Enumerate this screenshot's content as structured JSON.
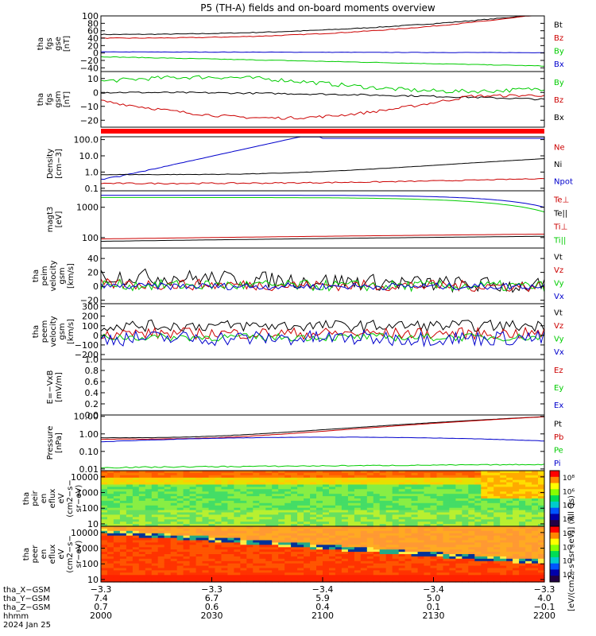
{
  "title": "P5 (TH-A) fields and on-board moments overview",
  "panels": [
    {
      "id": "fgs_gse",
      "ylabel_lines": [
        "tha",
        "fgs",
        "gse",
        "[nT]"
      ],
      "yticks": [
        "100",
        "80",
        "60",
        "40",
        "20",
        "0",
        "−20",
        "−40"
      ],
      "yrange": [
        -50,
        100
      ],
      "log": false,
      "legend": [
        {
          "label": "Bt",
          "color": "#000000"
        },
        {
          "label": "Bz",
          "color": "#cc0000"
        },
        {
          "label": "By",
          "color": "#00cc00"
        },
        {
          "label": "Bx",
          "color": "#0000cc"
        }
      ]
    },
    {
      "id": "fgs_gsm",
      "ylabel_lines": [
        "tha",
        "fgs",
        "gsm",
        "[nT]"
      ],
      "yticks": [
        "10",
        "0",
        "−10",
        "−20"
      ],
      "yrange": [
        -25,
        15
      ],
      "log": false,
      "legend": [
        {
          "label": "By",
          "color": "#00cc00"
        },
        {
          "label": "Bz",
          "color": "#cc0000"
        },
        {
          "label": "Bx",
          "color": "#000000"
        }
      ]
    },
    {
      "id": "density",
      "ylabel_lines": [
        "Density",
        "[cm−3]"
      ],
      "yticks": [
        "100.0",
        "10.0",
        "1.0",
        "0.1"
      ],
      "yrange": [
        0.07,
        150
      ],
      "log": true,
      "legend": [
        {
          "label": "Ne",
          "color": "#cc0000"
        },
        {
          "label": "Ni",
          "color": "#000000"
        },
        {
          "label": "Npot",
          "color": "#0000cc"
        }
      ]
    },
    {
      "id": "temperature",
      "ylabel_lines": [
        "magt3",
        "[eV]"
      ],
      "yticks": [
        "1000",
        "100"
      ],
      "yrange": [
        45,
        3500
      ],
      "log": true,
      "legend": [
        {
          "label": "Te⊥",
          "color": "#cc0000"
        },
        {
          "label": "Te||",
          "color": "#000000"
        },
        {
          "label": "Ti⊥",
          "color": "#cc0000"
        },
        {
          "label": "Ti||",
          "color": "#00cc00"
        }
      ]
    },
    {
      "id": "peim_velocity",
      "ylabel_lines": [
        "tha",
        "peim",
        "velocity",
        "gsm",
        "[km/s]"
      ],
      "yticks": [
        "40",
        "20",
        "0",
        "−20"
      ],
      "yrange": [
        -25,
        55
      ],
      "log": false,
      "legend": [
        {
          "label": "Vt",
          "color": "#000000"
        },
        {
          "label": "Vz",
          "color": "#cc0000"
        },
        {
          "label": "Vy",
          "color": "#00cc00"
        },
        {
          "label": "Vx",
          "color": "#0000cc"
        }
      ]
    },
    {
      "id": "peem_velocity",
      "ylabel_lines": [
        "tha",
        "peem",
        "velocity",
        "gsm",
        "[km/s]"
      ],
      "yticks": [
        "300",
        "200",
        "100",
        "0",
        "−100",
        "−200"
      ],
      "yrange": [
        -250,
        330
      ],
      "log": false,
      "legend": [
        {
          "label": "Vt",
          "color": "#000000"
        },
        {
          "label": "Vz",
          "color": "#cc0000"
        },
        {
          "label": "Vy",
          "color": "#00cc00"
        },
        {
          "label": "Vx",
          "color": "#0000cc"
        }
      ]
    },
    {
      "id": "efield",
      "ylabel_lines": [
        "E=−VxB",
        "[mV/m]"
      ],
      "yticks": [
        "1.0",
        "0.8",
        "0.6",
        "0.4",
        "0.2",
        "0.0"
      ],
      "yrange": [
        0,
        1
      ],
      "log": false,
      "legend": [
        {
          "label": "Ez",
          "color": "#cc0000"
        },
        {
          "label": "Ey",
          "color": "#00cc00"
        },
        {
          "label": "Ex",
          "color": "#0000cc"
        }
      ]
    },
    {
      "id": "pressure",
      "ylabel_lines": [
        "Pressure",
        "[nPa]"
      ],
      "yticks": [
        "10.00",
        "1.00",
        "0.10",
        "0.01"
      ],
      "yrange": [
        0.008,
        12
      ],
      "log": true,
      "legend": [
        {
          "label": "Pt",
          "color": "#000000"
        },
        {
          "label": "Pb",
          "color": "#cc0000"
        },
        {
          "label": "Pe",
          "color": "#00cc00"
        },
        {
          "label": "Pi",
          "color": "#0000cc"
        }
      ]
    },
    {
      "id": "peir_spec",
      "ylabel_lines": [
        "tha",
        "peir",
        "en",
        "eflux",
        "eV",
        "(cm2−s−",
        "sr−eV)"
      ],
      "yticks": [
        "10000",
        "1000",
        "100",
        "10"
      ],
      "yrange": [
        7,
        25000
      ],
      "log": true,
      "spectrogram": "ion",
      "colorbar_ticks": [
        "10⁸",
        "10⁶",
        "10⁴",
        "10²"
      ]
    },
    {
      "id": "peer_spec",
      "ylabel_lines": [
        "tha",
        "peer",
        "en",
        "eflux",
        "eV",
        "(cm2−s−",
        "sr−eV)"
      ],
      "yticks": [
        "10000",
        "1000",
        "100",
        "10"
      ],
      "yrange": [
        7,
        25000
      ],
      "log": true,
      "spectrogram": "electron",
      "colorbar_ticks": [
        "10⁸",
        "10⁶",
        "10⁴",
        "10²"
      ]
    }
  ],
  "colorbar_label": "[eV/(cm2−s−sr−eV)] (All Qs)",
  "ephemeris": {
    "row_labels": [
      "tha_X−GSM",
      "tha_Y−GSM",
      "tha_Z−GSM",
      "hhmm",
      "2024 Jan 25"
    ],
    "columns": [
      {
        "x": "−3.3",
        "y": "7.4",
        "z": "0.7",
        "t": "2000"
      },
      {
        "x": "−3.3",
        "y": "6.7",
        "z": "0.6",
        "t": "2030"
      },
      {
        "x": "−3.4",
        "y": "5.9",
        "z": "0.4",
        "t": "2100"
      },
      {
        "x": "−3.4",
        "y": "5.0",
        "z": "0.1",
        "t": "2130"
      },
      {
        "x": "−3.3",
        "y": "4.0",
        "z": "−0.1",
        "t": "2200"
      }
    ]
  },
  "colors": {
    "black": "#000000",
    "red": "#cc0000",
    "green": "#00cc00",
    "blue": "#0000cc",
    "flag": "#ff0000"
  }
}
